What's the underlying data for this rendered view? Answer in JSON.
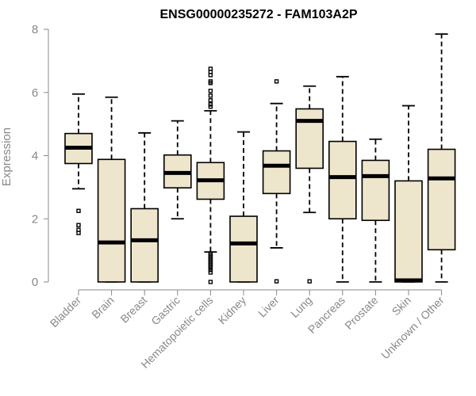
{
  "chart_data": {
    "type": "boxplot",
    "title": "ENSG00000235272 - FAM103A2P",
    "xlabel": "",
    "ylabel": "Expression",
    "ylim": [
      0,
      8
    ],
    "yticks": [
      0,
      2,
      4,
      6,
      8
    ],
    "colors": {
      "box_fill": "#ede6cc",
      "stroke": "#000000",
      "axis": "#888888"
    },
    "categories": [
      "Bladder",
      "Brain",
      "Breast",
      "Gastric",
      "Hematopoietic cells",
      "Kidney",
      "Liver",
      "Lung",
      "Pancreas",
      "Prostate",
      "Skin",
      "Unknown / Other"
    ],
    "boxes": [
      {
        "category": "Bladder",
        "whisker_low": 2.95,
        "q1": 3.75,
        "median": 4.25,
        "q3": 4.7,
        "whisker_high": 5.95,
        "outliers": [
          2.25,
          1.8,
          1.65,
          1.55
        ]
      },
      {
        "category": "Brain",
        "whisker_low": 0.0,
        "q1": 0.0,
        "median": 1.25,
        "q3": 3.88,
        "whisker_high": 5.85,
        "outliers": []
      },
      {
        "category": "Breast",
        "whisker_low": 0.0,
        "q1": 0.0,
        "median": 1.32,
        "q3": 2.32,
        "whisker_high": 4.72,
        "outliers": []
      },
      {
        "category": "Gastric",
        "whisker_low": 2.0,
        "q1": 2.98,
        "median": 3.45,
        "q3": 4.02,
        "whisker_high": 5.1,
        "outliers": []
      },
      {
        "category": "Hematopoietic cells",
        "whisker_low": 0.95,
        "q1": 2.62,
        "median": 3.22,
        "q3": 3.78,
        "whisker_high": 5.42,
        "outliers": [
          6.75,
          6.65,
          6.55,
          6.35,
          6.3,
          6.05,
          5.9,
          5.75,
          5.62,
          5.55,
          0.9,
          0.85,
          0.8,
          0.75,
          0.7,
          0.65,
          0.6,
          0.55,
          0.5,
          0.45,
          0.38,
          0.3,
          0.0
        ]
      },
      {
        "category": "Kidney",
        "whisker_low": 0.0,
        "q1": 0.0,
        "median": 1.22,
        "q3": 2.08,
        "whisker_high": 4.75,
        "outliers": []
      },
      {
        "category": "Liver",
        "whisker_low": 1.08,
        "q1": 2.8,
        "median": 3.68,
        "q3": 4.15,
        "whisker_high": 5.65,
        "outliers": [
          6.35,
          0.02
        ]
      },
      {
        "category": "Lung",
        "whisker_low": 2.2,
        "q1": 3.6,
        "median": 5.1,
        "q3": 5.48,
        "whisker_high": 6.2,
        "outliers": [
          0.02
        ]
      },
      {
        "category": "Pancreas",
        "whisker_low": 0.0,
        "q1": 2.0,
        "median": 3.32,
        "q3": 4.45,
        "whisker_high": 6.5,
        "outliers": []
      },
      {
        "category": "Prostate",
        "whisker_low": 0.0,
        "q1": 1.95,
        "median": 3.35,
        "q3": 3.85,
        "whisker_high": 4.52,
        "outliers": []
      },
      {
        "category": "Skin",
        "whisker_low": 0.0,
        "q1": 0.0,
        "median": 0.05,
        "q3": 3.2,
        "whisker_high": 5.58,
        "outliers": []
      },
      {
        "category": "Unknown / Other",
        "whisker_low": 0.0,
        "q1": 1.02,
        "median": 3.28,
        "q3": 4.2,
        "whisker_high": 7.85,
        "outliers": []
      }
    ]
  }
}
